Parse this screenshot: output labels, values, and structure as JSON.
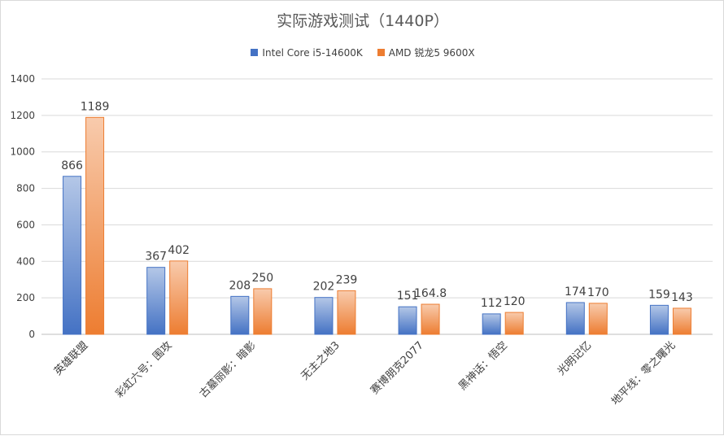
{
  "chart_data": {
    "type": "bar",
    "title": "实际游戏测试（1440P）",
    "categories": [
      "英雄联盟",
      "彩虹六号：围攻",
      "古墓丽影：暗影",
      "无主之地3",
      "赛博朋克2077",
      "黑神话：悟空",
      "光明记忆",
      "地平线：零之曙光"
    ],
    "series": [
      {
        "name": "Intel Core i5-14600K",
        "values": [
          866,
          367,
          208,
          202,
          151,
          112,
          174,
          159
        ],
        "labels": [
          "866",
          "367",
          "208",
          "202",
          "151",
          "112",
          "174",
          "159"
        ],
        "color": "#4472c4"
      },
      {
        "name": "AMD 锐龙5 9600X",
        "values": [
          1189,
          402,
          250,
          239,
          164.8,
          120,
          170,
          143
        ],
        "labels": [
          "1189",
          "402",
          "250",
          "239",
          "164.8",
          "120",
          "170",
          "143"
        ],
        "color": "#ed7d31"
      }
    ],
    "ylim": [
      0,
      1400
    ],
    "yticks": [
      "0",
      "200",
      "400",
      "600",
      "800",
      "1000",
      "1200",
      "1400"
    ],
    "grid": true,
    "legend": "top-center"
  }
}
